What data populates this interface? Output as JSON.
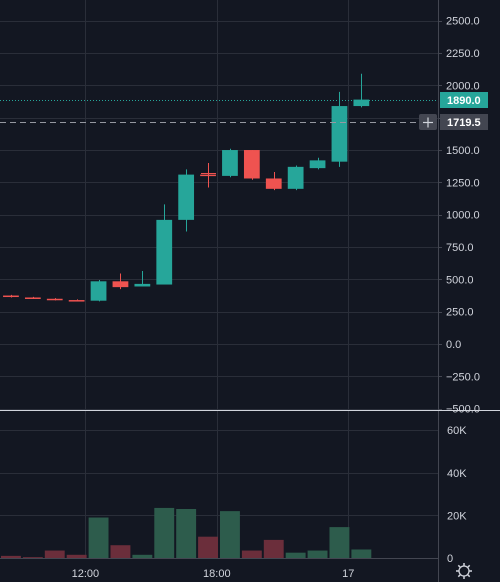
{
  "chart_data": {
    "type": "candlestick",
    "price_axis": {
      "ticks": [
        {
          "value": 2500,
          "label": "2500.0"
        },
        {
          "value": 2250,
          "label": "2250.0"
        },
        {
          "value": 2000,
          "label": "2000.0"
        },
        {
          "value": 1750,
          "label": "1750.0"
        },
        {
          "value": 1500,
          "label": "1500.0"
        },
        {
          "value": 1250,
          "label": "1250.0"
        },
        {
          "value": 1000,
          "label": "1000.0"
        },
        {
          "value": 750,
          "label": "750.0"
        },
        {
          "value": 500,
          "label": "500.0"
        },
        {
          "value": 250,
          "label": "250.0"
        },
        {
          "value": 0,
          "label": "0.0"
        },
        {
          "value": -250,
          "label": "−250.0"
        },
        {
          "value": -500,
          "label": "−500.0"
        }
      ],
      "range": [
        -510,
        2660
      ]
    },
    "volume_axis": {
      "ticks": [
        {
          "value": 60000,
          "label": "60K"
        },
        {
          "value": 40000,
          "label": "40K"
        },
        {
          "value": 20000,
          "label": "20K"
        },
        {
          "value": 0,
          "label": "0"
        }
      ],
      "range": [
        0,
        69000
      ]
    },
    "time_axis": {
      "labels": [
        {
          "index": 3.4,
          "label": "12:00"
        },
        {
          "index": 9.4,
          "label": "18:00"
        },
        {
          "index": 15.4,
          "label": "17"
        }
      ],
      "bar_range": [
        -0.5,
        19.5
      ]
    },
    "candles": [
      {
        "open": 375,
        "high": 380,
        "low": 360,
        "close": 365
      },
      {
        "open": 360,
        "high": 365,
        "low": 348,
        "close": 352
      },
      {
        "open": 350,
        "high": 355,
        "low": 338,
        "close": 342
      },
      {
        "open": 340,
        "high": 345,
        "low": 330,
        "close": 338
      },
      {
        "open": 335,
        "high": 495,
        "low": 330,
        "close": 485
      },
      {
        "open": 485,
        "high": 545,
        "low": 425,
        "close": 440
      },
      {
        "open": 445,
        "high": 565,
        "low": 445,
        "close": 465
      },
      {
        "open": 460,
        "high": 1080,
        "low": 460,
        "close": 960
      },
      {
        "open": 960,
        "high": 1350,
        "low": 870,
        "close": 1310
      },
      {
        "open": 1310,
        "high": 1400,
        "low": 1210,
        "close": 1300
      },
      {
        "open": 1300,
        "high": 1510,
        "low": 1290,
        "close": 1500
      },
      {
        "open": 1500,
        "high": 1500,
        "low": 1270,
        "close": 1280
      },
      {
        "open": 1280,
        "high": 1330,
        "low": 1190,
        "close": 1200
      },
      {
        "open": 1200,
        "high": 1380,
        "low": 1190,
        "close": 1370
      },
      {
        "open": 1360,
        "high": 1440,
        "low": 1350,
        "close": 1420
      },
      {
        "open": 1410,
        "high": 1950,
        "low": 1370,
        "close": 1840
      },
      {
        "open": 1840,
        "high": 2090,
        "low": 1830,
        "close": 1890
      }
    ],
    "volumes": [
      1000,
      400,
      3500,
      1500,
      19000,
      6000,
      1500,
      23500,
      23000,
      10000,
      22000,
      3500,
      8500,
      2500,
      3500,
      14500,
      4000
    ],
    "last_price": {
      "value": 1890,
      "label": "1890.0"
    },
    "crosshair_price": {
      "value": 1719.5,
      "label": "1719.5"
    }
  },
  "colors": {
    "background": "#131722",
    "grid": "#2a2e39",
    "up": "#26a69a",
    "down": "#ef5350",
    "up_volume": "#2d5c4c",
    "down_volume": "#6b2e3b",
    "axis_line": "#d1d4dc",
    "crosshair_label": "#434651",
    "last_price_line": "#26a69a"
  },
  "icons": {
    "plus": "plus-icon",
    "settings": "gear-icon"
  }
}
